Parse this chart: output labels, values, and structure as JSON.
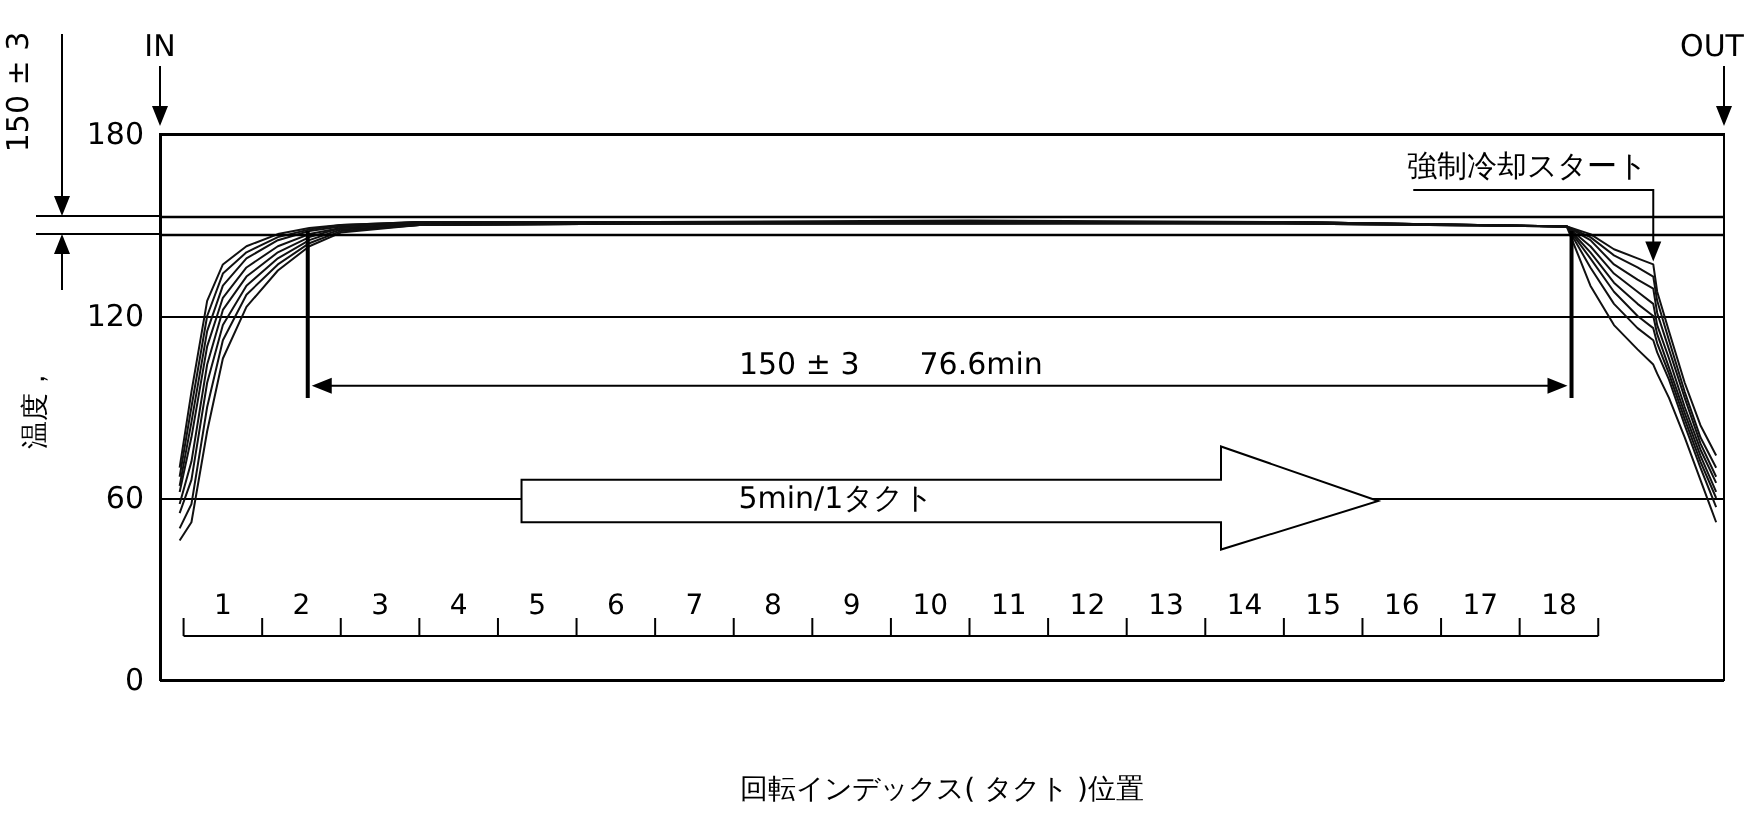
{
  "chart_data": {
    "type": "line",
    "xlabel": "回転インデックス( タクト )位置",
    "ylabel": "温度，",
    "annotations": [
      "IN",
      "OUT",
      "強制冷却スタート",
      "150 ± 3",
      "150 ± 3　　76.6min",
      "5min/1タクト"
    ],
    "x": [
      -0.05,
      0.1,
      0.3,
      0.5,
      0.8,
      1.2,
      1.6,
      2.0,
      3.0,
      6.0,
      10.0,
      14.0,
      17.6,
      17.9,
      18.2,
      18.5,
      18.7,
      18.75,
      18.9,
      19.1,
      19.3,
      19.5
    ],
    "series": [
      {
        "color": "#111111",
        "values": [
          70,
          95,
          125,
          137,
          143,
          147,
          149,
          150,
          151,
          151,
          151.5,
          151,
          149.5,
          147,
          142,
          139,
          137,
          128,
          115,
          98,
          84,
          74
        ]
      },
      {
        "color": "#111111",
        "values": [
          67,
          90,
          120,
          134,
          141,
          146,
          148.5,
          150,
          151,
          151,
          151,
          151,
          149.5,
          146,
          140,
          136,
          133,
          125,
          112,
          95,
          80,
          70
        ]
      },
      {
        "color": "#111111",
        "values": [
          64,
          85,
          115,
          130,
          139,
          145,
          148,
          149.5,
          151,
          150.5,
          151,
          151,
          149.5,
          145,
          137,
          132,
          129,
          121,
          109,
          93,
          78,
          67
        ]
      },
      {
        "color": "#111111",
        "values": [
          62,
          80,
          110,
          126,
          136,
          143,
          147,
          149,
          150.5,
          151,
          151,
          150.5,
          149.5,
          143,
          134,
          128,
          124,
          117,
          106,
          90,
          76,
          65
        ]
      },
      {
        "color": "#111111",
        "values": [
          58,
          72,
          104,
          122,
          133,
          141,
          146,
          149,
          150.5,
          150.5,
          151,
          151,
          149.5,
          141,
          131,
          124,
          120,
          114,
          103,
          88,
          74,
          62
        ]
      },
      {
        "color": "#111111",
        "values": [
          55,
          66,
          98,
          117,
          130,
          139,
          145,
          148.5,
          150,
          150.5,
          150.5,
          151,
          149.5,
          139,
          128,
          120,
          116,
          111,
          101,
          86,
          72,
          60
        ]
      },
      {
        "color": "#111111",
        "values": [
          50,
          58,
          90,
          112,
          127,
          137,
          144,
          148,
          150,
          150.5,
          150.5,
          150.5,
          149.5,
          136,
          124,
          116,
          112,
          108,
          99,
          84,
          70,
          57
        ]
      },
      {
        "color": "#111111",
        "values": [
          46,
          52,
          82,
          106,
          123,
          135,
          143,
          147.5,
          150,
          150.5,
          150.5,
          150.5,
          149.5,
          130,
          117,
          109,
          104,
          101,
          93,
          80,
          66,
          52
        ]
      }
    ],
    "xlim": [
      -0.3,
      19.6
    ],
    "ylim": [
      0,
      180
    ],
    "xticks": [
      {
        "value": 0.5,
        "label": "1"
      },
      {
        "value": 1.5,
        "label": "2"
      },
      {
        "value": 2.5,
        "label": "3"
      },
      {
        "value": 3.5,
        "label": "4"
      },
      {
        "value": 4.5,
        "label": "5"
      },
      {
        "value": 5.5,
        "label": "6"
      },
      {
        "value": 6.5,
        "label": "7"
      },
      {
        "value": 7.5,
        "label": "8"
      },
      {
        "value": 8.5,
        "label": "9"
      },
      {
        "value": 9.5,
        "label": "10"
      },
      {
        "value": 10.5,
        "label": "11"
      },
      {
        "value": 11.5,
        "label": "12"
      },
      {
        "value": 12.5,
        "label": "13"
      },
      {
        "value": 13.5,
        "label": "14"
      },
      {
        "value": 14.5,
        "label": "15"
      },
      {
        "value": 15.5,
        "label": "16"
      },
      {
        "value": 16.5,
        "label": "17"
      },
      {
        "value": 17.5,
        "label": "18"
      }
    ],
    "yticks": [
      0,
      60,
      120,
      180
    ],
    "grid": "y",
    "ref_lines": [
      {
        "axis": "y",
        "value": 147
      },
      {
        "axis": "y",
        "value": 153
      }
    ]
  }
}
